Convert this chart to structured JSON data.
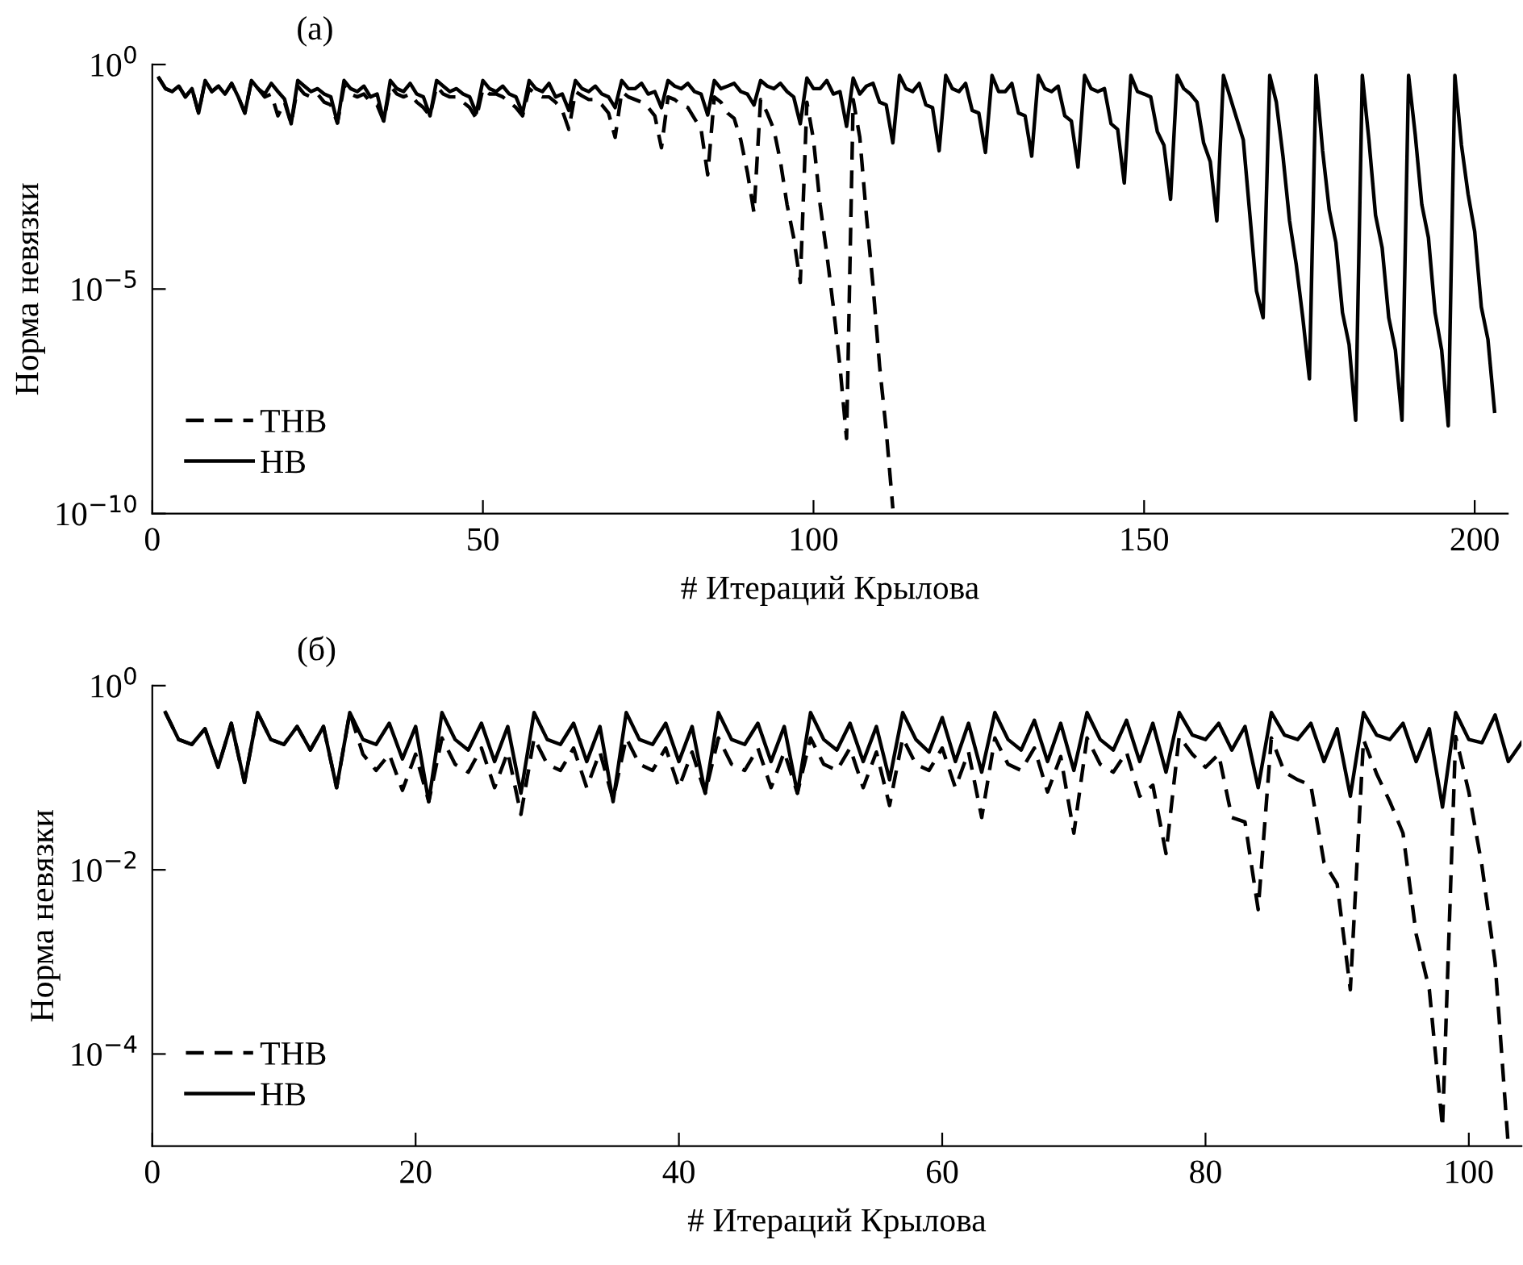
{
  "chart_data": [
    {
      "type": "line",
      "title": "(а)",
      "xlabel": "# Итераций Крылова",
      "ylabel": "Норма невязки",
      "log": "y",
      "xlim": [
        0,
        205
      ],
      "xticks": [
        0,
        50,
        100,
        150,
        200
      ],
      "ylim": [
        1e-10,
        1
      ],
      "yticks": [
        {
          "value": 1,
          "label": "10$^{0}$"
        },
        {
          "value": 1e-05,
          "label": "10$^{−5}$"
        },
        {
          "value": 1e-10,
          "label": "10$^{−10}$"
        }
      ],
      "legend": "bottom left",
      "x": [
        1,
        2,
        3,
        4,
        5,
        6,
        7,
        8,
        9,
        10,
        11,
        12,
        13,
        14,
        15,
        16,
        17,
        18,
        19,
        20,
        21,
        22,
        23,
        24,
        25,
        26,
        27,
        28,
        29,
        30,
        31,
        32,
        33,
        34,
        35,
        36,
        37,
        38,
        39,
        40,
        41,
        42,
        43,
        44,
        45,
        46,
        47,
        48,
        49,
        50,
        51,
        52,
        53,
        54,
        55,
        56,
        57,
        58,
        59,
        60,
        61,
        62,
        63,
        64,
        65,
        66,
        67,
        68,
        69,
        70,
        71,
        72,
        73,
        74,
        75,
        76,
        77,
        78,
        79,
        80,
        81,
        82,
        83,
        84,
        85,
        86,
        87,
        88,
        89,
        90,
        91,
        92,
        93,
        94,
        95,
        96,
        97,
        98,
        99,
        100,
        101,
        102,
        103,
        104,
        105,
        106,
        107,
        108,
        109,
        110,
        111,
        112,
        113,
        114,
        115,
        116,
        117,
        118,
        119,
        120,
        121,
        122,
        123,
        124,
        125,
        126,
        127,
        128,
        129,
        130,
        131,
        132,
        133,
        134,
        135,
        136,
        137,
        138,
        139,
        140,
        141,
        142,
        143,
        144,
        145,
        146,
        147,
        148,
        149,
        150,
        151,
        152,
        153,
        154,
        155,
        156,
        157,
        158,
        159,
        160,
        161,
        162,
        163,
        164,
        165,
        166,
        167,
        168,
        169,
        170,
        171,
        172,
        173,
        174,
        175,
        176,
        177,
        178,
        179,
        180,
        181,
        182,
        183,
        184,
        185,
        186,
        187,
        188,
        189,
        190,
        191,
        192,
        193,
        194,
        195,
        196,
        197,
        198,
        199,
        200,
        201,
        202,
        203
      ],
      "series": [
        {
          "name": "ТНВ",
          "color": "#000000",
          "line_style": "dashed",
          "x": [
            1,
            2,
            3,
            4,
            5,
            6,
            7,
            8,
            9,
            10,
            11,
            12,
            13,
            14,
            15,
            16,
            17,
            18,
            19,
            20,
            21,
            22,
            23,
            24,
            25,
            26,
            27,
            28,
            29,
            30,
            31,
            32,
            33,
            34,
            35,
            36,
            37,
            38,
            39,
            40,
            41,
            42,
            43,
            44,
            45,
            46,
            47,
            48,
            49,
            50,
            51,
            52,
            53,
            54,
            55,
            56,
            57,
            58,
            59,
            60,
            61,
            62,
            63,
            64,
            65,
            66,
            67,
            68,
            69,
            70,
            71,
            72,
            73,
            74,
            75,
            76,
            77,
            78,
            79,
            80,
            81,
            82,
            83,
            84,
            85,
            86,
            87,
            88,
            89,
            90,
            91,
            92,
            93,
            94,
            95,
            96,
            97,
            98,
            99,
            100,
            101,
            102,
            103,
            104,
            105,
            106,
            107,
            108,
            109,
            110,
            111,
            112
          ],
          "values": [
            0.5,
            0.29,
            0.25,
            0.33,
            0.19,
            0.29,
            0.083,
            0.44,
            0.25,
            0.33,
            0.22,
            0.38,
            0.19,
            0.083,
            0.44,
            0.29,
            0.19,
            0.22,
            0.072,
            0.145,
            0.048,
            0.33,
            0.22,
            0.19,
            0.22,
            0.145,
            0.126,
            0.05,
            0.33,
            0.22,
            0.19,
            0.22,
            0.145,
            0.126,
            0.055,
            0.33,
            0.22,
            0.19,
            0.22,
            0.145,
            0.11,
            0.072,
            0.33,
            0.22,
            0.19,
            0.19,
            0.145,
            0.11,
            0.063,
            0.29,
            0.22,
            0.22,
            0.19,
            0.145,
            0.11,
            0.072,
            0.29,
            0.22,
            0.19,
            0.19,
            0.145,
            0.095,
            0.036,
            0.25,
            0.2,
            0.166,
            0.166,
            0.126,
            0.083,
            0.024,
            0.25,
            0.19,
            0.166,
            0.145,
            0.11,
            0.072,
            0.014,
            0.19,
            0.166,
            0.126,
            0.11,
            0.063,
            0.036,
            0.0035,
            0.19,
            0.145,
            0.083,
            0.063,
            0.021,
            0.004,
            0.0005,
            0.166,
            0.083,
            0.036,
            0.0069,
            0.00076,
            0.00014,
            1.4e-05,
            0.145,
            0.021,
            0.00076,
            6.3e-05,
            4e-06,
            1.9e-07,
            4.7e-09,
            0.166,
            0.024,
            0.00044,
            1.2e-05,
            1.9e-07,
            7e-09,
            1.3e-10
          ]
        },
        {
          "name": "НВ",
          "color": "#000000",
          "line_style": "solid",
          "values": [
            0.5,
            0.29,
            0.25,
            0.33,
            0.19,
            0.29,
            0.083,
            0.44,
            0.25,
            0.33,
            0.22,
            0.38,
            0.19,
            0.083,
            0.44,
            0.29,
            0.22,
            0.38,
            0.25,
            0.17,
            0.048,
            0.44,
            0.33,
            0.25,
            0.29,
            0.22,
            0.19,
            0.05,
            0.44,
            0.29,
            0.25,
            0.33,
            0.19,
            0.22,
            0.055,
            0.44,
            0.29,
            0.25,
            0.38,
            0.22,
            0.19,
            0.072,
            0.44,
            0.33,
            0.25,
            0.29,
            0.22,
            0.19,
            0.083,
            0.44,
            0.29,
            0.25,
            0.33,
            0.22,
            0.19,
            0.083,
            0.44,
            0.29,
            0.25,
            0.38,
            0.19,
            0.22,
            0.095,
            0.44,
            0.29,
            0.25,
            0.33,
            0.22,
            0.19,
            0.11,
            0.44,
            0.29,
            0.29,
            0.38,
            0.22,
            0.25,
            0.11,
            0.44,
            0.33,
            0.29,
            0.38,
            0.25,
            0.22,
            0.075,
            0.44,
            0.29,
            0.33,
            0.38,
            0.25,
            0.22,
            0.126,
            0.44,
            0.33,
            0.29,
            0.38,
            0.25,
            0.19,
            0.048,
            0.5,
            0.29,
            0.29,
            0.44,
            0.22,
            0.25,
            0.042,
            0.5,
            0.22,
            0.33,
            0.38,
            0.145,
            0.126,
            0.018,
            0.57,
            0.29,
            0.25,
            0.38,
            0.126,
            0.11,
            0.012,
            0.57,
            0.29,
            0.25,
            0.38,
            0.095,
            0.083,
            0.011,
            0.57,
            0.25,
            0.25,
            0.38,
            0.083,
            0.072,
            0.0091,
            0.57,
            0.29,
            0.25,
            0.33,
            0.072,
            0.055,
            0.0052,
            0.57,
            0.29,
            0.25,
            0.29,
            0.048,
            0.036,
            0.0023,
            0.57,
            0.25,
            0.22,
            0.19,
            0.032,
            0.016,
            0.001,
            0.57,
            0.29,
            0.22,
            0.145,
            0.018,
            0.0069,
            0.00033,
            0.57,
            0.19,
            0.063,
            0.021,
            0.00044,
            9e-06,
            2.3e-06,
            0.57,
            0.145,
            0.0091,
            0.00033,
            3.6e-05,
            2.3e-06,
            1e-07,
            0.57,
            0.012,
            0.00058,
            0.00011,
            3e-06,
            5.8e-07,
            1.2e-08,
            0.57,
            0.021,
            0.00044,
            8.3e-05,
            2.3e-06,
            4.4e-07,
            1.2e-08,
            0.57,
            0.028,
            0.00076,
            0.00014,
            3e-06,
            4.4e-07,
            9e-09,
            0.57,
            0.016,
            0.0013,
            0.00019,
            4e-06,
            7.6e-07,
            1.9e-08
          ]
        }
      ]
    },
    {
      "type": "line",
      "title": "(б)",
      "xlabel": "# Итераций Крылова",
      "ylabel": "Норма невязки",
      "log": "y",
      "xlim": [
        0,
        104
      ],
      "xticks": [
        0,
        20,
        40,
        60,
        80,
        100
      ],
      "ylim": [
        1e-05,
        1
      ],
      "yticks": [
        {
          "value": 1,
          "label": "10$^{0}$"
        },
        {
          "value": 0.01,
          "label": "10$^{−2}$"
        },
        {
          "value": 0.0001,
          "label": "10$^{−4}$"
        }
      ],
      "legend": "bottom left",
      "x": [
        1,
        2,
        3,
        4,
        5,
        6,
        7,
        8,
        9,
        10,
        11,
        12,
        13,
        14,
        15,
        16,
        17,
        18,
        19,
        20,
        21,
        22,
        23,
        24,
        25,
        26,
        27,
        28,
        29,
        30,
        31,
        32,
        33,
        34,
        35,
        36,
        37,
        38,
        39,
        40,
        41,
        42,
        43,
        44,
        45,
        46,
        47,
        48,
        49,
        50,
        51,
        52,
        53,
        54,
        55,
        56,
        57,
        58,
        59,
        60,
        61,
        62,
        63,
        64,
        65,
        66,
        67,
        68,
        69,
        70,
        71,
        72,
        73,
        74,
        75,
        76,
        77,
        78,
        79,
        80,
        81,
        82,
        83,
        84,
        85,
        86,
        87,
        88,
        89,
        90,
        91,
        92,
        93,
        94,
        95,
        96,
        97,
        98,
        99,
        100,
        101,
        102,
        103,
        104
      ],
      "series": [
        {
          "name": "ТНВ",
          "color": "#000000",
          "line_style": "dashed",
          "x": [
            1,
            2,
            3,
            4,
            5,
            6,
            7,
            8,
            9,
            10,
            11,
            12,
            13,
            14,
            15,
            16,
            17,
            18,
            19,
            20,
            21,
            22,
            23,
            24,
            25,
            26,
            27,
            28,
            29,
            30,
            31,
            32,
            33,
            34,
            35,
            36,
            37,
            38,
            39,
            40,
            41,
            42,
            43,
            44,
            45,
            46,
            47,
            48,
            49,
            50,
            51,
            52,
            53,
            54,
            55,
            56,
            57,
            58,
            59,
            60,
            61,
            62,
            63,
            64,
            65,
            66,
            67,
            68,
            69,
            70,
            71,
            72,
            73,
            74,
            75,
            76,
            77,
            78,
            79,
            80,
            81,
            82,
            83,
            84,
            85,
            86,
            87,
            88,
            89,
            90,
            91,
            92,
            93,
            94,
            95,
            96,
            97,
            98,
            99,
            100,
            101,
            102,
            103
          ],
          "values": [
            0.51,
            0.26,
            0.23,
            0.34,
            0.13,
            0.39,
            0.089,
            0.51,
            0.26,
            0.23,
            0.36,
            0.2,
            0.36,
            0.078,
            0.51,
            0.18,
            0.12,
            0.18,
            0.073,
            0.18,
            0.055,
            0.27,
            0.14,
            0.115,
            0.21,
            0.078,
            0.19,
            0.04,
            0.27,
            0.14,
            0.12,
            0.21,
            0.078,
            0.19,
            0.058,
            0.27,
            0.14,
            0.12,
            0.21,
            0.078,
            0.19,
            0.068,
            0.27,
            0.14,
            0.12,
            0.21,
            0.078,
            0.19,
            0.068,
            0.27,
            0.14,
            0.12,
            0.21,
            0.078,
            0.19,
            0.05,
            0.27,
            0.14,
            0.12,
            0.21,
            0.078,
            0.19,
            0.037,
            0.27,
            0.14,
            0.12,
            0.21,
            0.07,
            0.17,
            0.025,
            0.27,
            0.14,
            0.115,
            0.19,
            0.063,
            0.083,
            0.015,
            0.28,
            0.18,
            0.13,
            0.18,
            0.037,
            0.033,
            0.0037,
            0.27,
            0.115,
            0.095,
            0.083,
            0.012,
            0.007,
            0.0005,
            0.26,
            0.11,
            0.055,
            0.025,
            0.002,
            0.0005,
            1.6e-05,
            0.28,
            0.07,
            0.011,
            0.00097,
            1e-05
          ]
        },
        {
          "name": "НВ",
          "color": "#000000",
          "line_style": "solid",
          "values": [
            0.51,
            0.26,
            0.23,
            0.34,
            0.13,
            0.39,
            0.089,
            0.51,
            0.26,
            0.23,
            0.36,
            0.2,
            0.36,
            0.078,
            0.51,
            0.26,
            0.23,
            0.39,
            0.16,
            0.36,
            0.055,
            0.51,
            0.26,
            0.2,
            0.39,
            0.15,
            0.36,
            0.068,
            0.51,
            0.26,
            0.23,
            0.39,
            0.15,
            0.36,
            0.055,
            0.51,
            0.26,
            0.23,
            0.39,
            0.15,
            0.36,
            0.068,
            0.51,
            0.26,
            0.23,
            0.39,
            0.15,
            0.36,
            0.068,
            0.51,
            0.26,
            0.2,
            0.39,
            0.15,
            0.36,
            0.095,
            0.51,
            0.26,
            0.19,
            0.45,
            0.15,
            0.39,
            0.115,
            0.51,
            0.26,
            0.2,
            0.42,
            0.15,
            0.39,
            0.12,
            0.51,
            0.26,
            0.2,
            0.42,
            0.15,
            0.39,
            0.115,
            0.51,
            0.29,
            0.26,
            0.39,
            0.2,
            0.36,
            0.078,
            0.51,
            0.29,
            0.26,
            0.39,
            0.15,
            0.34,
            0.063,
            0.51,
            0.29,
            0.26,
            0.39,
            0.15,
            0.34,
            0.048,
            0.51,
            0.26,
            0.24,
            0.48,
            0.15,
            0.24
          ]
        }
      ]
    }
  ]
}
